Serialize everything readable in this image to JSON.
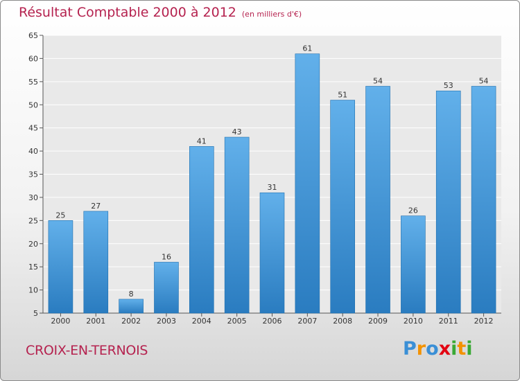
{
  "title": "Résultat Comptable 2000 à 2012",
  "subtitle": "(en milliers d'€)",
  "town": "CROIX-EN-TERNOIS",
  "logo": {
    "text": "Proxiti",
    "letters": [
      {
        "char": "P",
        "color": "#3a8fd6"
      },
      {
        "char": "r",
        "color": "#f39200"
      },
      {
        "char": "o",
        "color": "#3a8fd6"
      },
      {
        "char": "x",
        "color": "#e30613"
      },
      {
        "char": "i",
        "color": "#3aa935"
      },
      {
        "char": "t",
        "color": "#f39200"
      },
      {
        "char": "i",
        "color": "#3aa935"
      }
    ]
  },
  "colors": {
    "title": "#b5224f",
    "bar_light": "#62b0ea",
    "bar_dark": "#2a7cc0"
  },
  "chart_data": {
    "type": "bar",
    "title": "Résultat Comptable 2000 à 2012",
    "subtitle": "(en milliers d'€)",
    "xlabel": "",
    "ylabel": "",
    "categories": [
      "2000",
      "2001",
      "2002",
      "2003",
      "2004",
      "2005",
      "2006",
      "2007",
      "2008",
      "2009",
      "2010",
      "2011",
      "2012"
    ],
    "values": [
      25,
      27,
      8,
      16,
      41,
      43,
      31,
      61,
      51,
      54,
      26,
      53,
      54
    ],
    "ylim": [
      5,
      65
    ],
    "yticks": [
      5,
      10,
      15,
      20,
      25,
      30,
      35,
      40,
      45,
      50,
      55,
      60,
      65
    ],
    "grid": true,
    "data_labels": true
  }
}
